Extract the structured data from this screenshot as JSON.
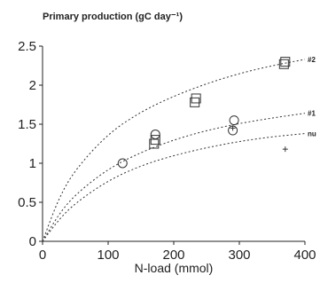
{
  "chart_data": {
    "type": "scatter",
    "title": "Primary production (gC day⁻¹)",
    "xlabel": "N-load (mmol)",
    "ylabel": "",
    "xlim": [
      0,
      400
    ],
    "ylim": [
      0,
      2.5
    ],
    "x_ticks": [
      "0",
      "100",
      "200",
      "300",
      "400"
    ],
    "y_ticks": [
      "0",
      "0.5",
      "1",
      "1.5",
      "2",
      "2.5"
    ],
    "series": [
      {
        "name": "#2",
        "marker": "square",
        "points": [
          [
            170,
            1.25
          ],
          [
            172,
            1.3
          ],
          [
            232,
            1.78
          ],
          [
            234,
            1.83
          ],
          [
            368,
            2.27
          ],
          [
            370,
            2.3
          ]
        ],
        "curve": [
          [
            0,
            0
          ],
          [
            25,
            0.56
          ],
          [
            50,
            0.92
          ],
          [
            100,
            1.38
          ],
          [
            150,
            1.66
          ],
          [
            200,
            1.86
          ],
          [
            250,
            2.02
          ],
          [
            300,
            2.15
          ],
          [
            350,
            2.25
          ],
          [
            400,
            2.33
          ]
        ]
      },
      {
        "name": "#1",
        "marker": "circle",
        "points": [
          [
            122,
            1.0
          ],
          [
            172,
            1.37
          ],
          [
            290,
            1.42
          ],
          [
            292,
            1.55
          ]
        ],
        "curve": [
          [
            0,
            0
          ],
          [
            25,
            0.35
          ],
          [
            50,
            0.6
          ],
          [
            100,
            0.93
          ],
          [
            150,
            1.14
          ],
          [
            200,
            1.3
          ],
          [
            250,
            1.42
          ],
          [
            300,
            1.51
          ],
          [
            350,
            1.58
          ],
          [
            400,
            1.64
          ]
        ]
      },
      {
        "name": "nu",
        "marker": "plus",
        "points": [
          [
            290,
            1.45
          ],
          [
            370,
            1.18
          ]
        ],
        "curve": [
          [
            0,
            0
          ],
          [
            25,
            0.28
          ],
          [
            50,
            0.49
          ],
          [
            100,
            0.78
          ],
          [
            150,
            0.97
          ],
          [
            200,
            1.1
          ],
          [
            250,
            1.2
          ],
          [
            300,
            1.28
          ],
          [
            350,
            1.34
          ],
          [
            400,
            1.38
          ]
        ]
      }
    ]
  }
}
